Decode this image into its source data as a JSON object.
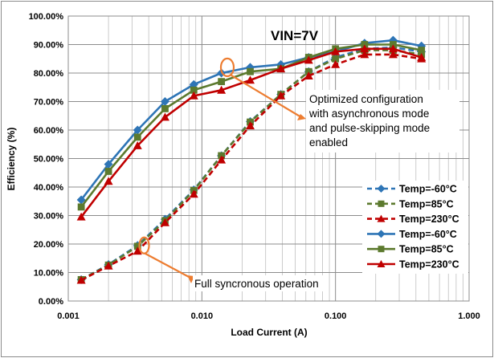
{
  "chart_data": {
    "type": "line",
    "title": "VIN=7V",
    "xlabel": "Load Current (A)",
    "ylabel": "Efficiency (%)",
    "x_scale": "log",
    "xlim": [
      0.001,
      1
    ],
    "ylim": [
      0,
      100
    ],
    "x_ticks": [
      {
        "value": 0.001,
        "label": "0.001"
      },
      {
        "value": 0.01,
        "label": "0.010"
      },
      {
        "value": 0.1,
        "label": "0.100"
      },
      {
        "value": 1,
        "label": "1.000"
      }
    ],
    "y_ticks": [
      {
        "value": 0,
        "label": "0.00%"
      },
      {
        "value": 10,
        "label": "10.00%"
      },
      {
        "value": 20,
        "label": "20.00%"
      },
      {
        "value": 30,
        "label": "30.00%"
      },
      {
        "value": 40,
        "label": "40.00%"
      },
      {
        "value": 50,
        "label": "50.00%"
      },
      {
        "value": 60,
        "label": "60.00%"
      },
      {
        "value": 70,
        "label": "70.00%"
      },
      {
        "value": 80,
        "label": "80.00%"
      },
      {
        "value": 90,
        "label": "90.00%"
      },
      {
        "value": 100,
        "label": "100.00%"
      }
    ],
    "grid": true,
    "legend_position": "right",
    "series": [
      {
        "name": "Temp=-60°C",
        "color": "#2E75B6",
        "dashed": true,
        "marker": "diamond",
        "x": [
          0.00125,
          0.002,
          0.0033,
          0.0053,
          0.0087,
          0.014,
          0.023,
          0.039,
          0.063,
          0.1,
          0.165,
          0.27,
          0.44
        ],
        "y": [
          7.5,
          12.8,
          19.5,
          28.7,
          39,
          51,
          63,
          72.5,
          80.5,
          85.5,
          88.5,
          89,
          87.5
        ]
      },
      {
        "name": "Temp=85°C",
        "color": "#5C7A2E",
        "dashed": true,
        "marker": "square",
        "x": [
          0.00125,
          0.002,
          0.0033,
          0.0053,
          0.0087,
          0.014,
          0.023,
          0.039,
          0.063,
          0.1,
          0.165,
          0.27,
          0.44
        ],
        "y": [
          7.5,
          12.6,
          19.2,
          28.2,
          38.8,
          51,
          62.8,
          72.5,
          80.5,
          85,
          88,
          88,
          86.5
        ]
      },
      {
        "name": "Temp=230°C",
        "color": "#C00000",
        "dashed": true,
        "marker": "triangle",
        "x": [
          0.00125,
          0.002,
          0.0033,
          0.0053,
          0.0087,
          0.014,
          0.023,
          0.039,
          0.063,
          0.1,
          0.165,
          0.27,
          0.44
        ],
        "y": [
          7.3,
          12.3,
          17.5,
          27.5,
          37.5,
          49.5,
          61.5,
          72,
          79,
          83,
          86.5,
          86.5,
          85
        ]
      },
      {
        "name": "Temp=-60°C",
        "color": "#2E75B6",
        "dashed": false,
        "marker": "diamond",
        "x": [
          0.00125,
          0.002,
          0.0033,
          0.0053,
          0.0087,
          0.014,
          0.023,
          0.039,
          0.063,
          0.1,
          0.165,
          0.27,
          0.44
        ],
        "y": [
          35.5,
          48,
          60,
          70,
          76,
          80,
          82,
          83,
          85.5,
          87.5,
          90.5,
          91.5,
          89.5
        ]
      },
      {
        "name": "Temp=85°C",
        "color": "#5C7A2E",
        "dashed": false,
        "marker": "square",
        "x": [
          0.00125,
          0.002,
          0.0033,
          0.0053,
          0.0087,
          0.014,
          0.023,
          0.039,
          0.063,
          0.1,
          0.165,
          0.27,
          0.44
        ],
        "y": [
          33,
          45.5,
          57.5,
          67.5,
          74,
          77,
          80.5,
          81.5,
          85.5,
          88.5,
          90,
          90,
          88
        ]
      },
      {
        "name": "Temp=230°C",
        "color": "#C00000",
        "dashed": false,
        "marker": "triangle",
        "x": [
          0.00125,
          0.002,
          0.0033,
          0.0053,
          0.0087,
          0.014,
          0.023,
          0.039,
          0.063,
          0.1,
          0.165,
          0.27,
          0.44
        ],
        "y": [
          29.5,
          42,
          54.5,
          64.5,
          72,
          74,
          77.5,
          81.5,
          84.5,
          87.5,
          88.5,
          88.5,
          85.5
        ]
      }
    ],
    "annotations": [
      {
        "id": "async",
        "lines": [
          "Optimized configuration",
          "with asynchronous mode",
          "and pulse-skipping mode",
          "enabled"
        ],
        "target": [
          0.0155,
          82
        ]
      },
      {
        "id": "sync",
        "lines": [
          "Full syncronous operation"
        ],
        "target": [
          0.0037,
          19.5
        ]
      }
    ],
    "colors": {
      "annotation": "#ED7D31",
      "axis": "#8c8c8c",
      "grid": "#bfbfbf"
    }
  }
}
